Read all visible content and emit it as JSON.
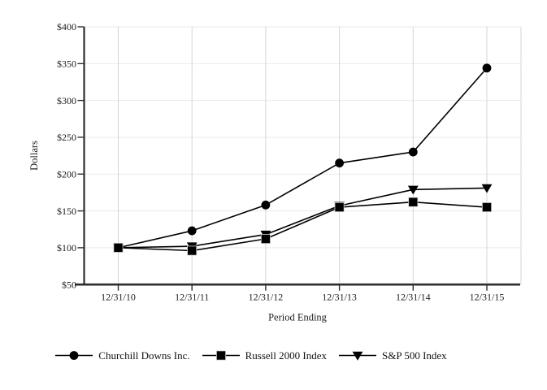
{
  "chart_data": {
    "type": "line",
    "title": "",
    "xlabel": "Period Ending",
    "ylabel": "Dollars",
    "x_labels": [
      "12/31/10",
      "12/31/11",
      "12/31/12",
      "12/31/13",
      "12/31/14",
      "12/31/15"
    ],
    "y_ticks": [
      50,
      100,
      150,
      200,
      250,
      300,
      350,
      400
    ],
    "y_tick_labels": [
      "$50",
      "$100",
      "$150",
      "$200",
      "$250",
      "$300",
      "$350",
      "$400"
    ],
    "ylim": [
      50,
      400
    ],
    "grid": true,
    "legend_position": "bottom",
    "series": [
      {
        "name": "Churchill Downs Inc.",
        "marker": "circle",
        "values": [
          100,
          123,
          158,
          215,
          230,
          344
        ]
      },
      {
        "name": "Russell 2000 Index",
        "marker": "square",
        "values": [
          100,
          96,
          112,
          155,
          162,
          155
        ]
      },
      {
        "name": "S&P 500 Index",
        "marker": "triangle-down",
        "values": [
          100,
          102,
          118,
          157,
          179,
          181
        ]
      }
    ],
    "colors": {
      "series": "#000000",
      "axis": "#2e2e2e",
      "grid_h": "#e9e9e9",
      "grid_v": "#d6d6d6",
      "text": "#1c1c1c",
      "background": "#ffffff"
    }
  }
}
